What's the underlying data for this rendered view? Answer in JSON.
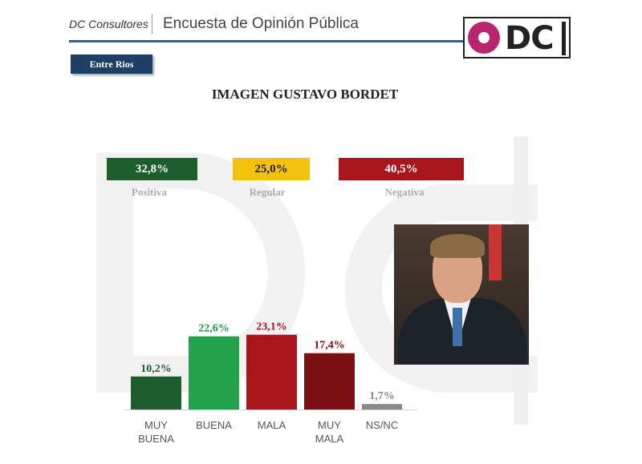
{
  "header": {
    "brand": "DC Consultores",
    "title": "Encuesta de Opinión Pública",
    "logo_text": "DC",
    "region": "Entre Rios"
  },
  "summary": [
    {
      "value": "32,8%",
      "label": "Positiva",
      "color": "#1e5e2e",
      "text_color": "#ffffff"
    },
    {
      "value": "25,0%",
      "label": "Regular",
      "color": "#f4c20d",
      "text_color": "#222222"
    },
    {
      "value": "40,5%",
      "label": "Negativa",
      "color": "#a8151b",
      "text_color": "#ffffff"
    }
  ],
  "chart_data": {
    "type": "bar",
    "title": "IMAGEN GUSTAVO BORDET",
    "categories": [
      "MUY BUENA",
      "BUENA",
      "MALA",
      "MUY MALA",
      "NS/NC"
    ],
    "values": [
      10.2,
      22.6,
      23.1,
      17.4,
      1.7
    ],
    "labels": [
      "10,2%",
      "22,6%",
      "23,1%",
      "17,4%",
      "1,7%"
    ],
    "colors": [
      "#1e5e2e",
      "#22a24a",
      "#a8151b",
      "#7a0f14",
      "#8a8a8a"
    ],
    "label_colors": [
      "#1e5e2e",
      "#1f9a45",
      "#a8151b",
      "#7a0f14",
      "#888888"
    ],
    "ylim": [
      0,
      25
    ],
    "grid": false
  }
}
